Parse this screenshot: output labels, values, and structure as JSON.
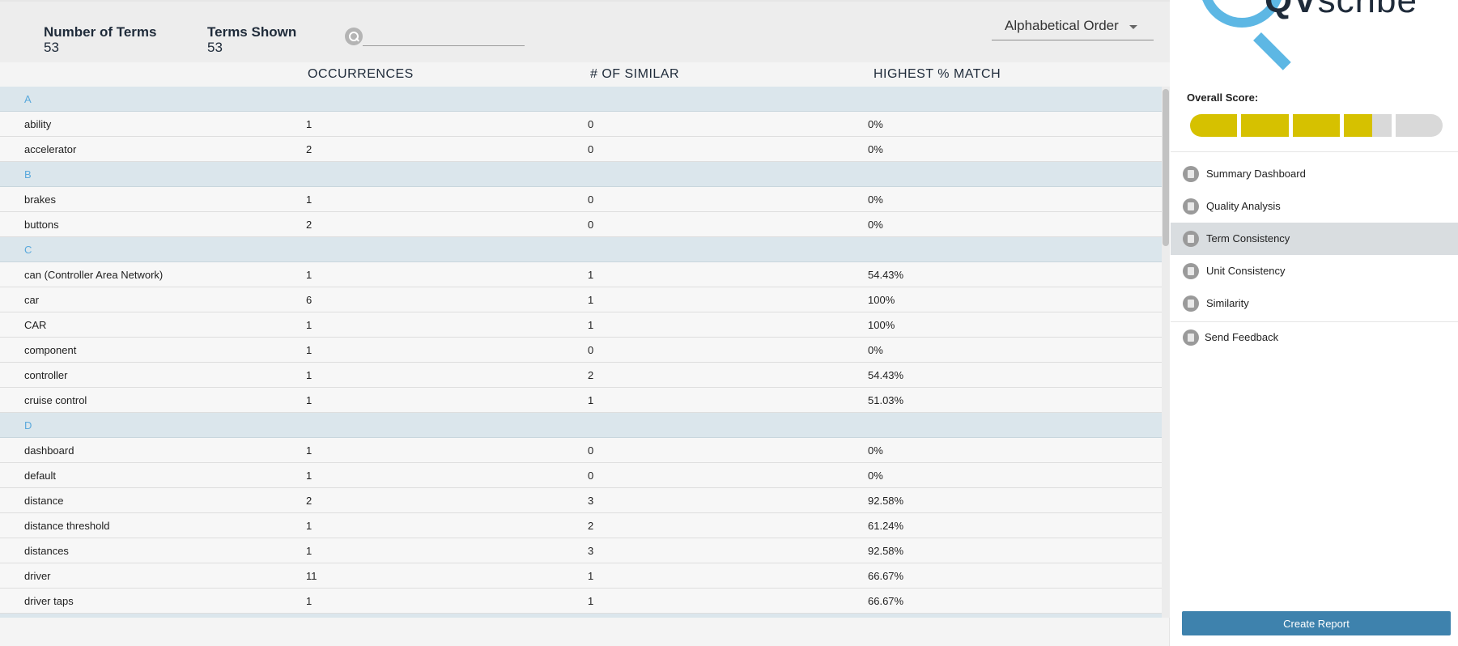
{
  "header": {
    "number_of_terms_label": "Number of Terms",
    "number_of_terms_value": "53",
    "terms_shown_label": "Terms Shown",
    "terms_shown_value": "53",
    "search_placeholder": "",
    "sort_label": "Alphabetical Order"
  },
  "columns": {
    "occurrences": "OCCURRENCES",
    "similar": "# OF SIMILAR",
    "highest_match": "HIGHEST % MATCH"
  },
  "rows": [
    {
      "type": "group",
      "term": "A"
    },
    {
      "type": "term",
      "term": "ability",
      "occurrences": "1",
      "similar": "0",
      "match": "0%"
    },
    {
      "type": "term",
      "term": "accelerator",
      "occurrences": "2",
      "similar": "0",
      "match": "0%"
    },
    {
      "type": "group",
      "term": "B"
    },
    {
      "type": "term",
      "term": "brakes",
      "occurrences": "1",
      "similar": "0",
      "match": "0%"
    },
    {
      "type": "term",
      "term": "buttons",
      "occurrences": "2",
      "similar": "0",
      "match": "0%"
    },
    {
      "type": "group",
      "term": "C"
    },
    {
      "type": "term",
      "term": "can (Controller Area Network)",
      "occurrences": "1",
      "similar": "1",
      "match": "54.43%"
    },
    {
      "type": "term",
      "term": "car",
      "occurrences": "6",
      "similar": "1",
      "match": "100%"
    },
    {
      "type": "term",
      "term": "CAR",
      "occurrences": "1",
      "similar": "1",
      "match": "100%"
    },
    {
      "type": "term",
      "term": "component",
      "occurrences": "1",
      "similar": "0",
      "match": "0%"
    },
    {
      "type": "term",
      "term": "controller",
      "occurrences": "1",
      "similar": "2",
      "match": "54.43%"
    },
    {
      "type": "term",
      "term": "cruise control",
      "occurrences": "1",
      "similar": "1",
      "match": "51.03%"
    },
    {
      "type": "group",
      "term": "D"
    },
    {
      "type": "term",
      "term": "dashboard",
      "occurrences": "1",
      "similar": "0",
      "match": "0%"
    },
    {
      "type": "term",
      "term": "default",
      "occurrences": "1",
      "similar": "0",
      "match": "0%"
    },
    {
      "type": "term",
      "term": "distance",
      "occurrences": "2",
      "similar": "3",
      "match": "92.58%"
    },
    {
      "type": "term",
      "term": "distance threshold",
      "occurrences": "1",
      "similar": "2",
      "match": "61.24%"
    },
    {
      "type": "term",
      "term": "distances",
      "occurrences": "1",
      "similar": "3",
      "match": "92.58%"
    },
    {
      "type": "term",
      "term": "driver",
      "occurrences": "11",
      "similar": "1",
      "match": "66.67%"
    },
    {
      "type": "term",
      "term": "driver taps",
      "occurrences": "1",
      "similar": "1",
      "match": "66.67%"
    }
  ],
  "sidebar": {
    "brand_bold": "QV",
    "brand_light": "scribe",
    "score_label": "Overall Score:",
    "score_fraction": 0.72,
    "nav": [
      {
        "label": "Summary Dashboard",
        "icon": "dashboard-icon"
      },
      {
        "label": "Quality Analysis",
        "icon": "warning-icon"
      },
      {
        "label": "Term Consistency",
        "icon": "document-icon",
        "active": true
      },
      {
        "label": "Unit Consistency",
        "icon": "unit-icon"
      },
      {
        "label": "Similarity",
        "icon": "similarity-icon"
      }
    ],
    "feedback_label": "Send Feedback",
    "create_report_label": "Create Report"
  },
  "colors": {
    "accent": "#5db7e4",
    "score_fill": "#d6c100",
    "button": "#3e82ad",
    "group_row": "#dbe6ec"
  }
}
